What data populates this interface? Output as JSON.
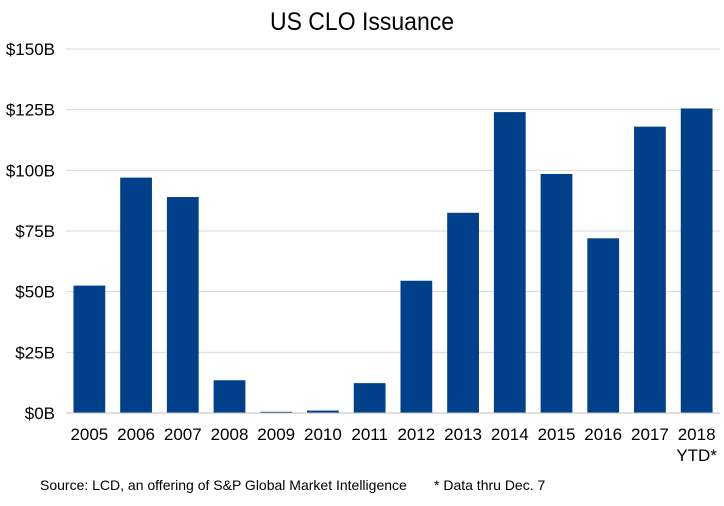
{
  "chart_data": {
    "type": "bar",
    "title": "US CLO Issuance",
    "xlabel": "",
    "ylabel": "",
    "categories": [
      "2005",
      "2006",
      "2007",
      "2008",
      "2009",
      "2010",
      "2011",
      "2012",
      "2013",
      "2014",
      "2015",
      "2016",
      "2017",
      "2018"
    ],
    "category_sublabels": [
      "",
      "",
      "",
      "",
      "",
      "",
      "",
      "",
      "",
      "",
      "",
      "",
      "",
      "YTD*"
    ],
    "values": [
      52.5,
      97,
      89,
      13.5,
      0.5,
      1.0,
      12.3,
      54.5,
      82.5,
      124,
      98.5,
      72,
      118,
      125.5
    ],
    "ylim": [
      0,
      150
    ],
    "yticks": [
      0,
      25,
      50,
      75,
      100,
      125,
      150
    ],
    "ytick_labels": [
      "$0B",
      "$25B",
      "$50B",
      "$75B",
      "$100B",
      "$125B",
      "$150B"
    ],
    "grid": true,
    "bar_color": "#003f8a",
    "grid_color": "#d9d9d9"
  },
  "footnotes": {
    "source": "Source: LCD, an offering of S&P Global Market Intelligence",
    "data_note": "* Data thru Dec. 7"
  }
}
